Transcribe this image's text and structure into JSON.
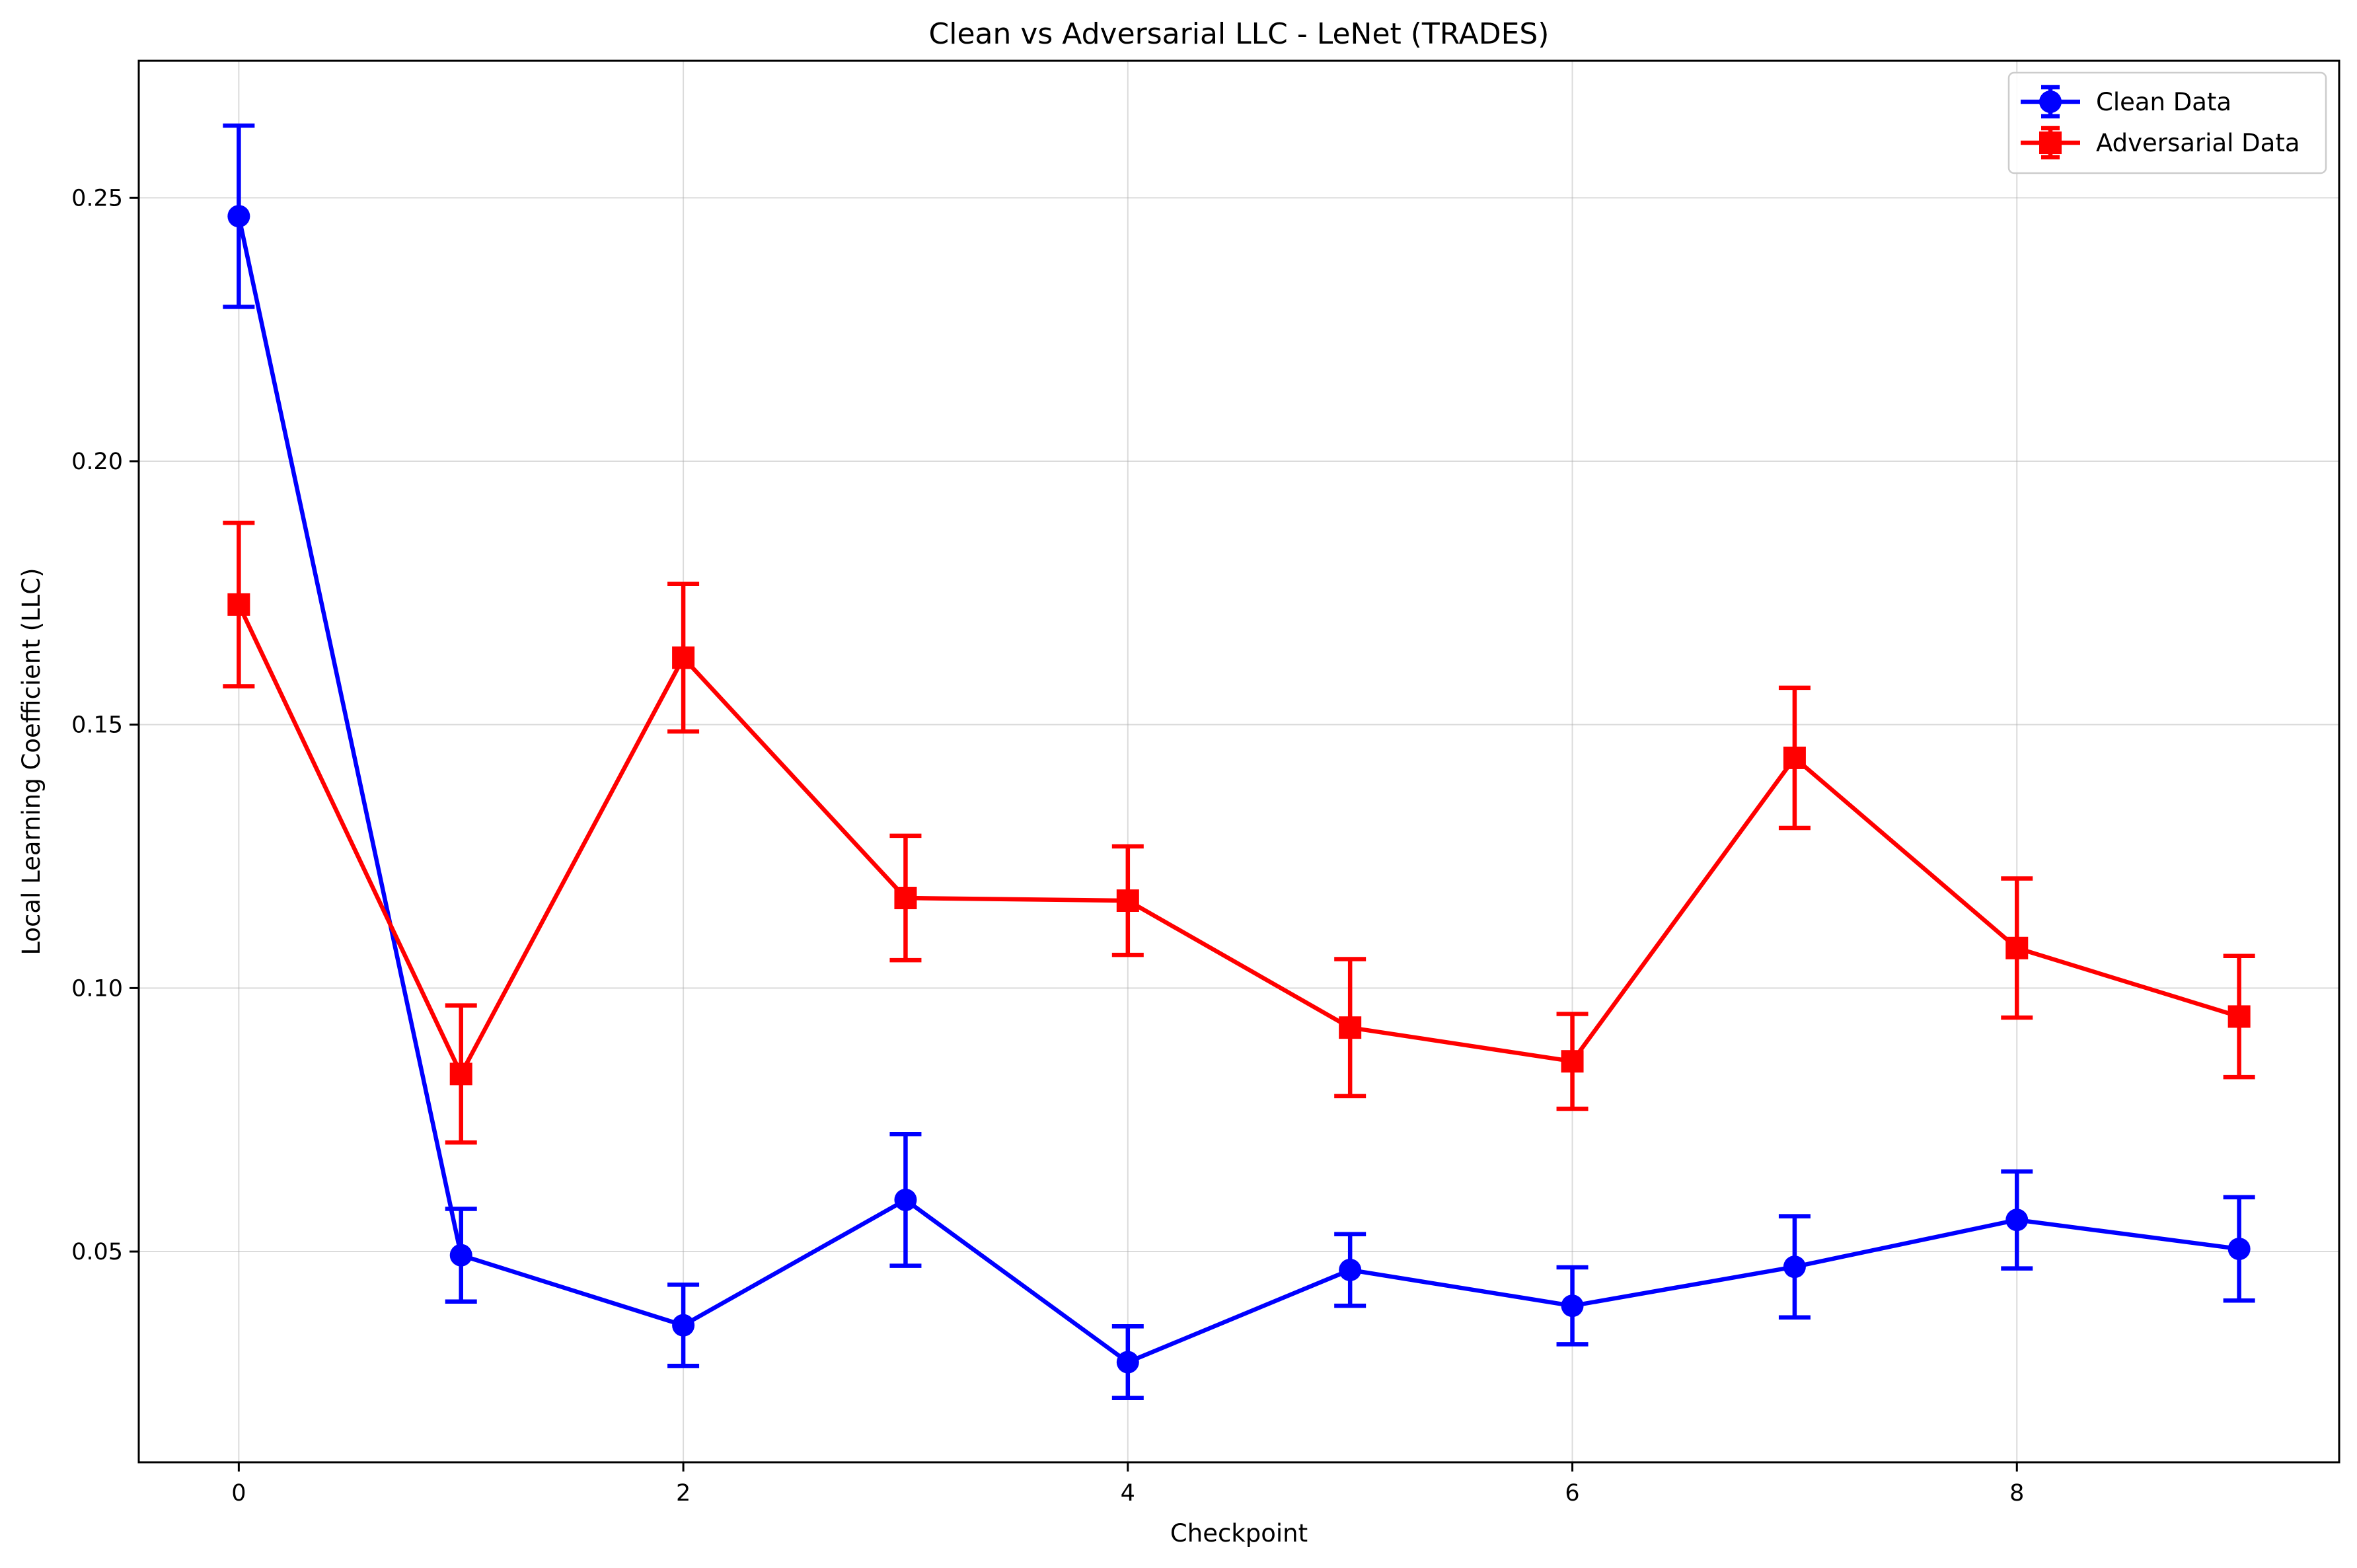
{
  "chart_data": {
    "type": "line",
    "title": "Clean vs Adversarial LLC - LeNet (TRADES)",
    "xlabel": "Checkpoint",
    "ylabel": "Local Learning Coefficient (LLC)",
    "xlim": [
      -0.45,
      9.45
    ],
    "ylim": [
      0.01,
      0.276
    ],
    "xticks": [
      0,
      2,
      4,
      6,
      8
    ],
    "xtick_labels": [
      "0",
      "2",
      "4",
      "6",
      "8"
    ],
    "yticks": [
      0.05,
      0.1,
      0.15,
      0.2,
      0.25
    ],
    "ytick_labels": [
      "0.05",
      "0.10",
      "0.15",
      "0.20",
      "0.25"
    ],
    "grid": true,
    "legend_position": "top-right",
    "x": [
      0,
      1,
      2,
      3,
      4,
      5,
      6,
      7,
      8,
      9
    ],
    "series": [
      {
        "name": "Clean Data",
        "color": "#0000ff",
        "marker": "circle",
        "values": [
          0.2465,
          0.0493,
          0.036,
          0.0598,
          0.029,
          0.0465,
          0.0397,
          0.0471,
          0.056,
          0.0505
        ],
        "error": [
          0.0172,
          0.0088,
          0.0077,
          0.0125,
          0.0068,
          0.0068,
          0.0073,
          0.0096,
          0.0092,
          0.0098
        ]
      },
      {
        "name": "Adversarial Data",
        "color": "#ff0000",
        "marker": "square",
        "values": [
          0.1728,
          0.0837,
          0.1627,
          0.1171,
          0.1166,
          0.0925,
          0.0861,
          0.1437,
          0.1076,
          0.0946
        ],
        "error": [
          0.0155,
          0.013,
          0.014,
          0.0118,
          0.0103,
          0.013,
          0.009,
          0.0133,
          0.0132,
          0.0115
        ]
      }
    ]
  }
}
